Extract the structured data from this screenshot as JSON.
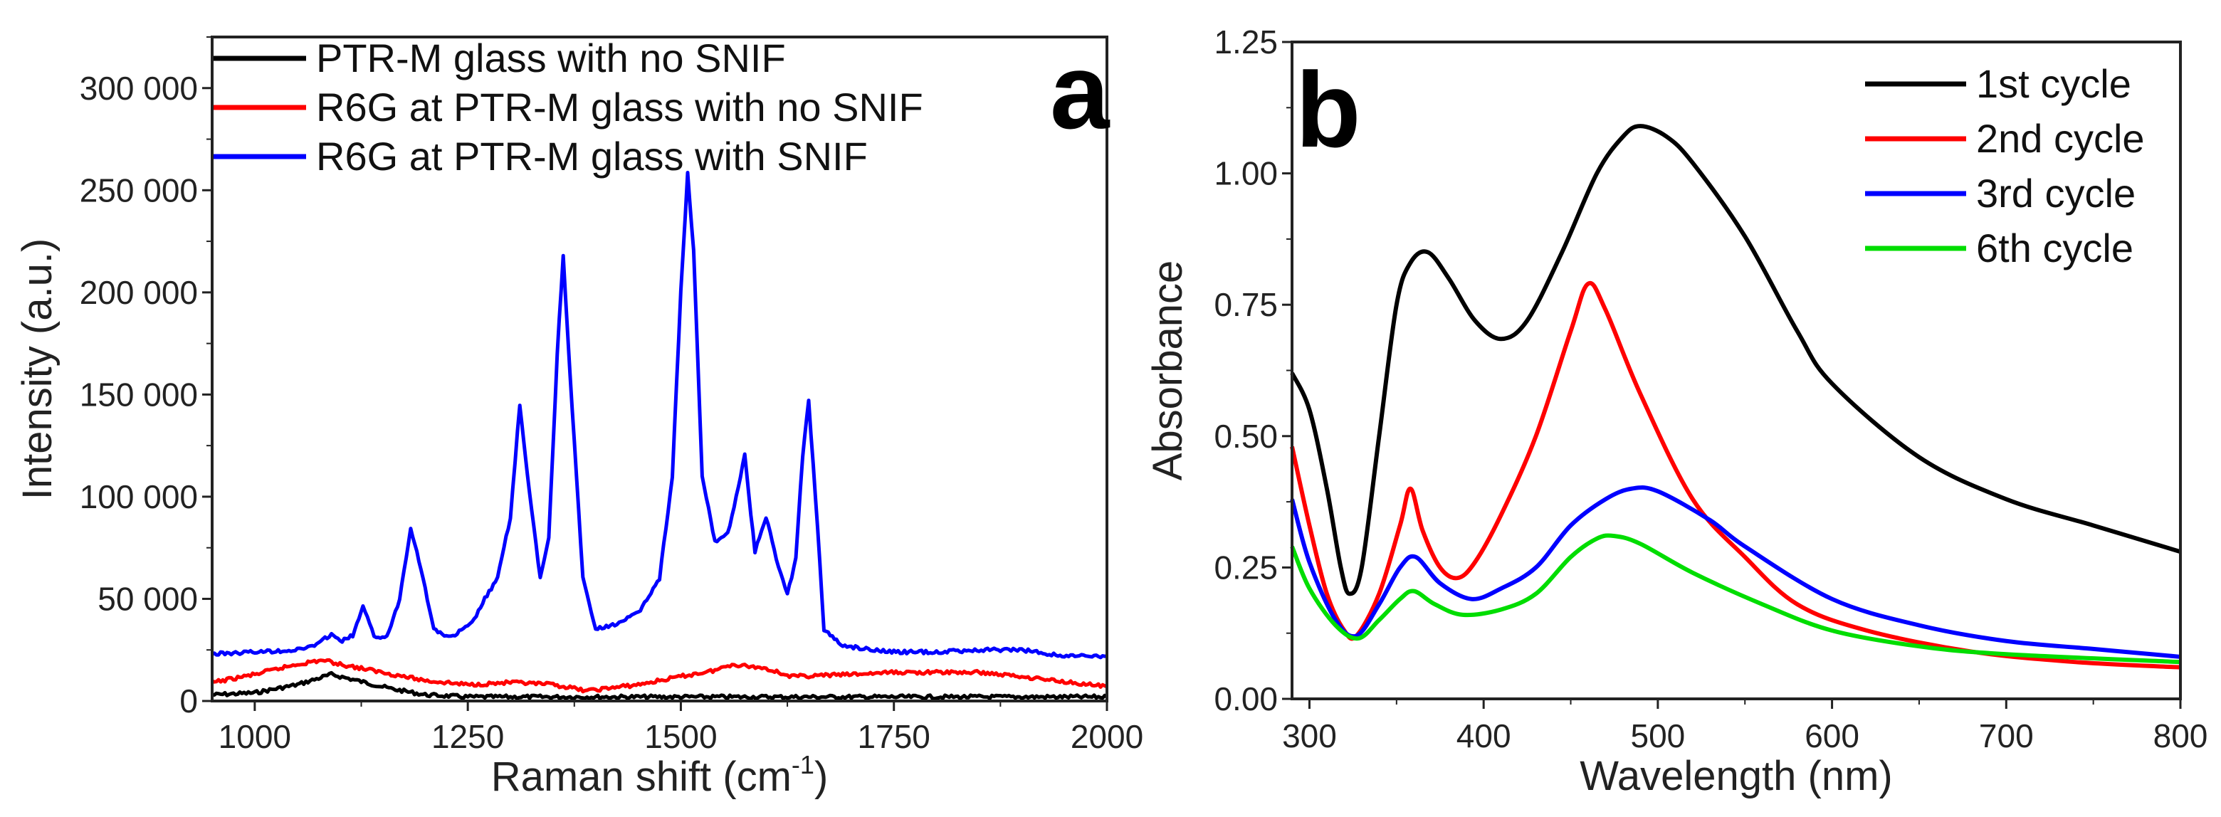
{
  "chart_data": [
    {
      "panel_label": "a",
      "type": "line",
      "xlabel": "Raman shift (cm",
      "xlabel_sup": "-1",
      "xlabel_close": ")",
      "ylabel": "Intensity (a.u.)",
      "xlim": [
        950,
        2000
      ],
      "ylim": [
        0,
        325000
      ],
      "xticks": [
        1000,
        1250,
        1500,
        1750,
        2000
      ],
      "xtick_labels": [
        "1000",
        "1250",
        "1500",
        "1750",
        "2000"
      ],
      "yticks": [
        0,
        50000,
        100000,
        150000,
        200000,
        250000,
        300000
      ],
      "ytick_labels": [
        "0",
        "50 000",
        "100 000",
        "150 000",
        "200 000",
        "250 000",
        "300 000"
      ],
      "legend_position": "top-left",
      "series": [
        {
          "name": "PTR-M glass with no SNIF",
          "color": "#000000",
          "points": [
            [
              950,
              3000
            ],
            [
              1000,
              4000
            ],
            [
              1050,
              8000
            ],
            [
              1090,
              13000
            ],
            [
              1120,
              10000
            ],
            [
              1160,
              6000
            ],
            [
              1200,
              3000
            ],
            [
              1250,
              2000
            ],
            [
              1500,
              2000
            ],
            [
              2000,
              2000
            ]
          ]
        },
        {
          "name": "R6G at PTR-M glass with no SNIF",
          "color": "#ff0000",
          "points": [
            [
              950,
              9000
            ],
            [
              1000,
              13000
            ],
            [
              1050,
              18000
            ],
            [
              1080,
              20000
            ],
            [
              1100,
              18000
            ],
            [
              1150,
              14000
            ],
            [
              1200,
              10000
            ],
            [
              1250,
              8000
            ],
            [
              1300,
              9000
            ],
            [
              1350,
              8000
            ],
            [
              1390,
              5000
            ],
            [
              1450,
              8000
            ],
            [
              1500,
              12000
            ],
            [
              1540,
              15000
            ],
            [
              1560,
              18000
            ],
            [
              1600,
              16000
            ],
            [
              1630,
              12000
            ],
            [
              1700,
              13000
            ],
            [
              1750,
              14000
            ],
            [
              1850,
              14000
            ],
            [
              1900,
              12000
            ],
            [
              2000,
              7000
            ]
          ]
        },
        {
          "name": "R6G at PTR-M glass with SNIF",
          "color": "#0000ff",
          "points": [
            [
              950,
              23000
            ],
            [
              1000,
              24000
            ],
            [
              1050,
              25000
            ],
            [
              1075,
              28000
            ],
            [
              1090,
              33000
            ],
            [
              1100,
              29000
            ],
            [
              1115,
              32000
            ],
            [
              1127,
              46000
            ],
            [
              1140,
              32000
            ],
            [
              1155,
              31000
            ],
            [
              1170,
              50000
            ],
            [
              1183,
              85000
            ],
            [
              1195,
              65000
            ],
            [
              1210,
              35000
            ],
            [
              1230,
              31000
            ],
            [
              1255,
              38000
            ],
            [
              1270,
              50000
            ],
            [
              1285,
              60000
            ],
            [
              1300,
              90000
            ],
            [
              1311,
              145000
            ],
            [
              1320,
              110000
            ],
            [
              1335,
              60000
            ],
            [
              1345,
              80000
            ],
            [
              1355,
              170000
            ],
            [
              1362,
              218000
            ],
            [
              1370,
              160000
            ],
            [
              1385,
              60000
            ],
            [
              1400,
              35000
            ],
            [
              1420,
              37000
            ],
            [
              1450,
              43000
            ],
            [
              1475,
              60000
            ],
            [
              1490,
              110000
            ],
            [
              1500,
              200000
            ],
            [
              1508,
              258000
            ],
            [
              1515,
              220000
            ],
            [
              1525,
              110000
            ],
            [
              1540,
              78000
            ],
            [
              1555,
              82000
            ],
            [
              1565,
              100000
            ],
            [
              1575,
              120000
            ],
            [
              1587,
              73000
            ],
            [
              1600,
              90000
            ],
            [
              1612,
              70000
            ],
            [
              1625,
              52000
            ],
            [
              1635,
              70000
            ],
            [
              1643,
              120000
            ],
            [
              1650,
              147000
            ],
            [
              1658,
              100000
            ],
            [
              1668,
              35000
            ],
            [
              1690,
              27000
            ],
            [
              1750,
              24000
            ],
            [
              1800,
              24000
            ],
            [
              1850,
              25000
            ],
            [
              1900,
              25000
            ],
            [
              1950,
              22000
            ],
            [
              2000,
              22000
            ]
          ]
        }
      ]
    },
    {
      "panel_label": "b",
      "type": "line",
      "xlabel": "Wavelength (nm)",
      "ylabel": "Absorbance",
      "xlim": [
        290,
        800
      ],
      "ylim": [
        0,
        1.25
      ],
      "xticks": [
        300,
        400,
        500,
        600,
        700,
        800
      ],
      "xtick_labels": [
        "300",
        "400",
        "500",
        "600",
        "700",
        "800"
      ],
      "yticks": [
        0,
        0.25,
        0.5,
        0.75,
        1.0,
        1.25
      ],
      "ytick_labels": [
        "0.00",
        "0.25",
        "0.50",
        "0.75",
        "1.00",
        "1.25"
      ],
      "legend_position": "top-right",
      "series": [
        {
          "name": "1st cycle",
          "color": "#000000",
          "points": [
            [
              290,
              0.62
            ],
            [
              300,
              0.55
            ],
            [
              310,
              0.4
            ],
            [
              318,
              0.25
            ],
            [
              323,
              0.2
            ],
            [
              330,
              0.25
            ],
            [
              340,
              0.5
            ],
            [
              350,
              0.75
            ],
            [
              358,
              0.83
            ],
            [
              368,
              0.85
            ],
            [
              380,
              0.8
            ],
            [
              395,
              0.72
            ],
            [
              410,
              0.685
            ],
            [
              425,
              0.72
            ],
            [
              445,
              0.85
            ],
            [
              465,
              1.0
            ],
            [
              480,
              1.07
            ],
            [
              490,
              1.09
            ],
            [
              505,
              1.07
            ],
            [
              520,
              1.02
            ],
            [
              550,
              0.88
            ],
            [
              580,
              0.7
            ],
            [
              600,
              0.6
            ],
            [
              650,
              0.46
            ],
            [
              700,
              0.38
            ],
            [
              750,
              0.33
            ],
            [
              800,
              0.28
            ]
          ]
        },
        {
          "name": "2nd cycle",
          "color": "#ff0000",
          "points": [
            [
              290,
              0.48
            ],
            [
              300,
              0.33
            ],
            [
              310,
              0.2
            ],
            [
              320,
              0.13
            ],
            [
              327,
              0.12
            ],
            [
              340,
              0.2
            ],
            [
              352,
              0.33
            ],
            [
              358,
              0.4
            ],
            [
              365,
              0.32
            ],
            [
              375,
              0.25
            ],
            [
              385,
              0.23
            ],
            [
              395,
              0.26
            ],
            [
              410,
              0.35
            ],
            [
              430,
              0.5
            ],
            [
              450,
              0.7
            ],
            [
              460,
              0.79
            ],
            [
              470,
              0.74
            ],
            [
              490,
              0.58
            ],
            [
              520,
              0.38
            ],
            [
              550,
              0.27
            ],
            [
              580,
              0.18
            ],
            [
              620,
              0.13
            ],
            [
              680,
              0.09
            ],
            [
              740,
              0.07
            ],
            [
              800,
              0.06
            ]
          ]
        },
        {
          "name": "3rd cycle",
          "color": "#0000ff",
          "points": [
            [
              290,
              0.38
            ],
            [
              300,
              0.26
            ],
            [
              315,
              0.15
            ],
            [
              327,
              0.12
            ],
            [
              340,
              0.18
            ],
            [
              352,
              0.25
            ],
            [
              361,
              0.27
            ],
            [
              375,
              0.22
            ],
            [
              393,
              0.19
            ],
            [
              410,
              0.21
            ],
            [
              430,
              0.25
            ],
            [
              450,
              0.33
            ],
            [
              470,
              0.38
            ],
            [
              485,
              0.4
            ],
            [
              500,
              0.395
            ],
            [
              530,
              0.34
            ],
            [
              550,
              0.29
            ],
            [
              600,
              0.19
            ],
            [
              650,
              0.14
            ],
            [
              700,
              0.11
            ],
            [
              750,
              0.095
            ],
            [
              800,
              0.08
            ]
          ]
        },
        {
          "name": "6th cycle",
          "color": "#00dd00",
          "points": [
            [
              290,
              0.29
            ],
            [
              300,
              0.21
            ],
            [
              315,
              0.14
            ],
            [
              328,
              0.115
            ],
            [
              340,
              0.15
            ],
            [
              352,
              0.19
            ],
            [
              360,
              0.205
            ],
            [
              372,
              0.18
            ],
            [
              388,
              0.16
            ],
            [
              410,
              0.17
            ],
            [
              430,
              0.2
            ],
            [
              450,
              0.27
            ],
            [
              465,
              0.305
            ],
            [
              475,
              0.31
            ],
            [
              490,
              0.295
            ],
            [
              520,
              0.24
            ],
            [
              560,
              0.18
            ],
            [
              600,
              0.13
            ],
            [
              650,
              0.1
            ],
            [
              700,
              0.085
            ],
            [
              800,
              0.07
            ]
          ]
        }
      ]
    }
  ]
}
